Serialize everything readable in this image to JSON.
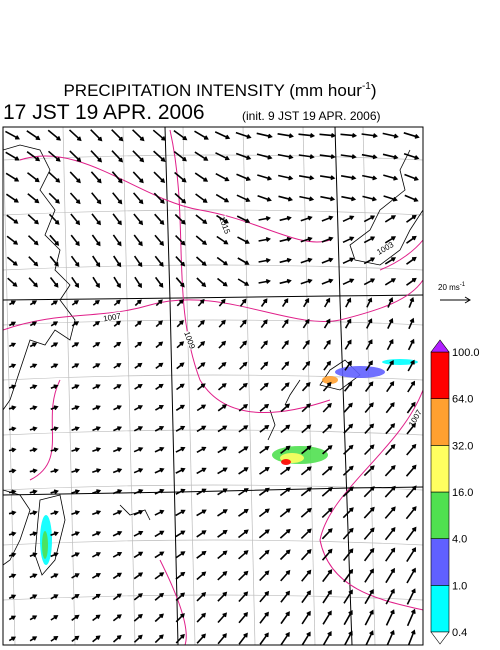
{
  "header": {
    "title": "PRECIPITATION INTENSITY (mm hour",
    "title_sup": "-1",
    "title_end": ")",
    "valid_time": "17 JST 19 APR. 2006",
    "init_time": "(init. 9 JST 19 APR. 2006)"
  },
  "wind_scale": {
    "label": "20 ms",
    "sup": "-1"
  },
  "isobar_labels": [
    "1015",
    "1007",
    "1009",
    "1003",
    "1007"
  ],
  "colorbar": {
    "colors": [
      "#00ffff",
      "#6060ff",
      "#50e050",
      "#ffff60",
      "#ffa030",
      "#ff0000"
    ],
    "over_color": "#b020ff",
    "under_color": "#ffffff",
    "ticks": [
      {
        "value": 0.4,
        "label": "0.4"
      },
      {
        "value": 1,
        "label": "1.0"
      },
      {
        "value": 4,
        "label": "4.0"
      },
      {
        "value": 16,
        "label": "16.0"
      },
      {
        "value": 32,
        "label": "32.0"
      },
      {
        "value": 64,
        "label": "64.0"
      },
      {
        "value": 100,
        "label": "100.0"
      }
    ]
  }
}
